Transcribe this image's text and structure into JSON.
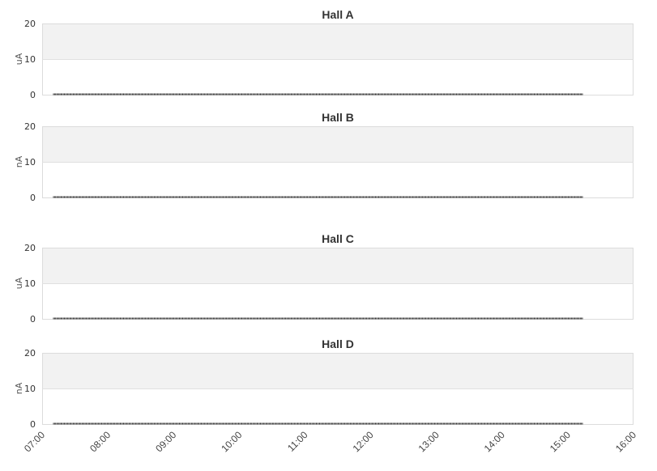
{
  "chart_data": [
    {
      "type": "line",
      "title": "Hall A",
      "ylabel": "uA",
      "ylim": [
        0,
        20
      ],
      "yticks": [
        "0",
        "10",
        "20"
      ],
      "series": [
        {
          "x_start": "07:10",
          "x_end": "15:13",
          "interval_minutes": 2,
          "value": 0
        }
      ]
    },
    {
      "type": "line",
      "title": "Hall B",
      "ylabel": "nA",
      "ylim": [
        0,
        20
      ],
      "yticks": [
        "0",
        "10",
        "20"
      ],
      "series": [
        {
          "x_start": "07:10",
          "x_end": "15:13",
          "interval_minutes": 2,
          "value": 0
        }
      ]
    },
    {
      "type": "line",
      "title": "Hall C",
      "ylabel": "uA",
      "ylim": [
        0,
        20
      ],
      "yticks": [
        "0",
        "10",
        "20"
      ],
      "series": [
        {
          "x_start": "07:10",
          "x_end": "15:13",
          "interval_minutes": 2,
          "value": 0
        }
      ]
    },
    {
      "type": "line",
      "title": "Hall D",
      "ylabel": "nA",
      "ylim": [
        0,
        20
      ],
      "yticks": [
        "0",
        "10",
        "20"
      ],
      "series": [
        {
          "x_start": "07:10",
          "x_end": "15:13",
          "interval_minutes": 2,
          "value": 0
        }
      ]
    }
  ],
  "xaxis": {
    "range": [
      "07:00",
      "16:00"
    ],
    "ticks": [
      "07:00",
      "08:00",
      "09:00",
      "10:00",
      "11:00",
      "12:00",
      "13:00",
      "14:00",
      "15:00",
      "16:00"
    ]
  },
  "colors": {
    "band": "#f2f2f2",
    "grid": "#e0e0e0",
    "series": "#333333"
  }
}
